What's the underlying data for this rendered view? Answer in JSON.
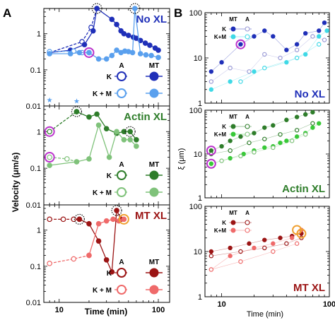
{
  "colors": {
    "no_dark": "#1f2fb8",
    "no_light": "#5aa0ee",
    "no_cyan": "#3fd9e6",
    "no_grey": "#9a9ad6",
    "actin_dark": "#2e7d2a",
    "actin_light": "#7fc27a",
    "actin_bright": "#38c938",
    "mt_dark": "#9b1414",
    "mt_light": "#ef6a6a",
    "magenta": "#bb33cc",
    "orange": "#f0a030"
  },
  "panel_labels": {
    "a": "A",
    "b": "B"
  },
  "panel_a": {
    "ylabel": "Velocity (μm/s)",
    "xlabel": "Time (min)",
    "x_ticks": [
      "10",
      "100"
    ],
    "y_ticks": [
      "0.01",
      "0.1",
      "1"
    ]
  },
  "panel_b": {
    "ylabel": "ξ (μm)",
    "xlabel": "Time (min)",
    "x_ticks": [
      "10",
      "100"
    ],
    "y_ticks": [
      "1",
      "10",
      "100"
    ]
  },
  "legend": {
    "a_col": "A",
    "mt_col": "MT",
    "k_row": "K",
    "km_row": "K + M",
    "km_row_b": "K+M"
  },
  "chart_data": [
    {
      "type": "line",
      "panel": "A",
      "title": "No XL",
      "xlabel": "Time (min)",
      "ylabel": "Velocity (μm/s)",
      "xscale": "log",
      "yscale": "log",
      "xlim": [
        7,
        130
      ],
      "ylim": [
        0.01,
        5
      ],
      "series": [
        {
          "name": "K (A)",
          "dashed": true,
          "hollow": true,
          "color": "#1f2fb8",
          "x": [
            8,
            17,
            21,
            24
          ],
          "y": [
            0.3,
            0.6,
            1.5,
            5
          ]
        },
        {
          "name": "K (MT)",
          "dashed": false,
          "hollow": false,
          "color": "#1f2fb8",
          "x": [
            8,
            13,
            18,
            22,
            24,
            34,
            38,
            42,
            45,
            50,
            56,
            60,
            66,
            74,
            82,
            93,
            100
          ],
          "y": [
            0.3,
            0.35,
            0.5,
            1.2,
            5,
            2.5,
            1.8,
            1.2,
            1.0,
            0.9,
            0.8,
            0.75,
            0.65,
            0.55,
            0.48,
            0.4,
            0.35
          ]
        },
        {
          "name": "K + M (A)",
          "dashed": true,
          "hollow": true,
          "color": "#5aa0ee",
          "x": [
            8,
            14,
            17,
            20
          ],
          "y": [
            0.32,
            0.33,
            0.3,
            0.3
          ]
        },
        {
          "name": "K + M (MT)",
          "dashed": false,
          "hollow": false,
          "color": "#5aa0ee",
          "x": [
            8,
            13,
            16,
            20,
            25,
            30,
            34,
            38,
            42,
            46,
            50,
            55,
            58,
            66,
            75,
            85,
            100
          ],
          "y": [
            0.28,
            0.28,
            0.3,
            0.3,
            0.2,
            0.2,
            0.25,
            0.35,
            0.3,
            0.33,
            0.32,
            0.3,
            5,
            0.28,
            0.26,
            0.25,
            0.22
          ]
        },
        {
          "name": "star",
          "dashed": false,
          "hollow": false,
          "color": "#5aa0ee",
          "x": [
            8,
            15
          ],
          "y": [
            0.015,
            0.014
          ]
        }
      ]
    },
    {
      "type": "line",
      "panel": "A",
      "title": "Actin XL",
      "xlabel": "Time (min)",
      "ylabel": "Velocity (μm/s)",
      "xscale": "log",
      "yscale": "log",
      "xlim": [
        7,
        130
      ],
      "ylim": [
        0.01,
        5
      ],
      "series": [
        {
          "name": "K (A)",
          "dashed": true,
          "hollow": true,
          "color": "#2e7d2a",
          "x": [
            8,
            15
          ],
          "y": [
            1.0,
            3.5
          ]
        },
        {
          "name": "K (MT)",
          "dashed": false,
          "hollow": false,
          "color": "#2e7d2a",
          "x": [
            15,
            20,
            24,
            30,
            38,
            45,
            52,
            60
          ],
          "y": [
            3.5,
            2.5,
            3.0,
            1.2,
            0.9,
            1.0,
            1.0,
            0.6
          ]
        },
        {
          "name": "K + M (A)",
          "dashed": true,
          "hollow": true,
          "color": "#7fc27a",
          "x": [
            8,
            12,
            15
          ],
          "y": [
            0.2,
            0.18,
            0.15
          ]
        },
        {
          "name": "K + M (MT)",
          "dashed": false,
          "hollow": false,
          "color": "#7fc27a",
          "x": [
            8,
            15,
            20,
            25,
            32,
            38,
            45,
            52,
            60
          ],
          "y": [
            0.12,
            0.15,
            0.18,
            1.5,
            0.2,
            1.0,
            0.6,
            0.6,
            0.4
          ]
        }
      ]
    },
    {
      "type": "line",
      "panel": "A",
      "title": "MT XL",
      "xlabel": "Time (min)",
      "ylabel": "Velocity (μm/s)",
      "xscale": "log",
      "yscale": "log",
      "xlim": [
        7,
        130
      ],
      "ylim": [
        0.01,
        5
      ],
      "series": [
        {
          "name": "K (A)",
          "dashed": true,
          "hollow": true,
          "color": "#9b1414",
          "x": [
            8,
            11,
            14,
            16
          ],
          "y": [
            2.0,
            2.0,
            2.0,
            2.0
          ]
        },
        {
          "name": "K (MT)",
          "dashed": false,
          "hollow": false,
          "color": "#9b1414",
          "x": [
            16,
            20,
            25,
            30,
            34,
            38,
            42
          ],
          "y": [
            2.0,
            1.5,
            0.5,
            0.15,
            0.07,
            3.5,
            2.0
          ]
        },
        {
          "name": "K + M (A)",
          "dashed": true,
          "hollow": true,
          "color": "#ef6a6a",
          "x": [
            8,
            14,
            20
          ],
          "y": [
            0.12,
            0.16,
            0.2
          ]
        },
        {
          "name": "K + M (MT)",
          "dashed": false,
          "hollow": false,
          "color": "#ef6a6a",
          "x": [
            20,
            25,
            30,
            35,
            40,
            45
          ],
          "y": [
            0.2,
            1.5,
            1.8,
            2.0,
            1.8,
            2.0
          ]
        }
      ]
    },
    {
      "type": "scatter",
      "panel": "B",
      "title": "No XL",
      "xlabel": "Time (min)",
      "ylabel": "ξ (μm)",
      "xscale": "log",
      "yscale": "log",
      "xlim": [
        7,
        100
      ],
      "ylim": [
        1,
        100
      ],
      "series": [
        {
          "name": "K (MT)",
          "hollow": false,
          "color": "#1f2fb8",
          "x": [
            8,
            10,
            15,
            20,
            25,
            30,
            40,
            50,
            60,
            80,
            90
          ],
          "y": [
            5,
            8,
            20,
            30,
            40,
            30,
            15,
            20,
            35,
            40,
            60
          ]
        },
        {
          "name": "K (A)",
          "hollow": true,
          "color": "#9a9ad6",
          "x": [
            8,
            12,
            18,
            25,
            35,
            50,
            70,
            90
          ],
          "y": [
            3,
            6,
            5,
            12,
            10,
            15,
            30,
            25
          ]
        },
        {
          "name": "K+M (MT)",
          "hollow": false,
          "color": "#3fd9e6",
          "x": [
            8,
            12,
            20,
            40,
            60,
            80,
            95
          ],
          "y": [
            2,
            3,
            5,
            8,
            12,
            30,
            40
          ]
        },
        {
          "name": "K+M (A)",
          "hollow": true,
          "color": "#3fd9e6",
          "x": [
            15,
            25,
            50,
            80
          ],
          "y": [
            3,
            6,
            10,
            20
          ]
        }
      ]
    },
    {
      "type": "scatter",
      "panel": "B",
      "title": "Actin XL",
      "xlabel": "Time (min)",
      "ylabel": "ξ (μm)",
      "xscale": "log",
      "yscale": "log",
      "xlim": [
        7,
        100
      ],
      "ylim": [
        1,
        100
      ],
      "series": [
        {
          "name": "K (MT)",
          "hollow": false,
          "color": "#2e7d2a",
          "x": [
            8,
            10,
            12,
            15,
            20,
            25,
            30,
            40,
            50,
            60,
            70
          ],
          "y": [
            12,
            15,
            20,
            25,
            30,
            40,
            45,
            60,
            70,
            80,
            90
          ]
        },
        {
          "name": "K (A)",
          "hollow": true,
          "color": "#2e7d2a",
          "x": [
            8,
            12,
            18,
            25,
            35,
            50,
            70
          ],
          "y": [
            10,
            12,
            18,
            22,
            28,
            35,
            50
          ]
        },
        {
          "name": "K+M (MT)",
          "hollow": false,
          "color": "#38c938",
          "x": [
            8,
            12,
            16,
            20,
            25,
            30,
            35,
            40,
            50,
            60,
            70,
            80
          ],
          "y": [
            6,
            8,
            10,
            12,
            14,
            15,
            18,
            20,
            25,
            30,
            40,
            50
          ]
        },
        {
          "name": "K+M (A)",
          "hollow": true,
          "color": "#7fc27a",
          "x": [
            10,
            15,
            20,
            30,
            45,
            60
          ],
          "y": [
            7,
            9,
            11,
            14,
            20,
            28
          ]
        }
      ]
    },
    {
      "type": "scatter",
      "panel": "B",
      "title": "MT XL",
      "xlabel": "Time (min)",
      "ylabel": "ξ (μm)",
      "xscale": "log",
      "yscale": "log",
      "xlim": [
        7,
        100
      ],
      "ylim": [
        1,
        100
      ],
      "series": [
        {
          "name": "K (MT)",
          "hollow": false,
          "color": "#9b1414",
          "x": [
            8,
            12,
            18,
            25,
            35,
            45,
            55
          ],
          "y": [
            10,
            12,
            15,
            18,
            20,
            22,
            25
          ]
        },
        {
          "name": "K (A)",
          "hollow": true,
          "color": "#9b1414",
          "x": [
            8,
            15,
            25,
            40,
            55
          ],
          "y": [
            8,
            10,
            12,
            15,
            20
          ]
        },
        {
          "name": "K+M (MT)",
          "hollow": false,
          "color": "#ef6a6a",
          "x": [
            8,
            12,
            20,
            30,
            45,
            55
          ],
          "y": [
            4,
            8,
            12,
            15,
            20,
            30
          ]
        },
        {
          "name": "K+M (A)",
          "hollow": true,
          "color": "#ef6a6a",
          "x": [
            8,
            15,
            30,
            50
          ],
          "y": [
            4,
            6,
            10,
            15
          ]
        }
      ]
    }
  ]
}
